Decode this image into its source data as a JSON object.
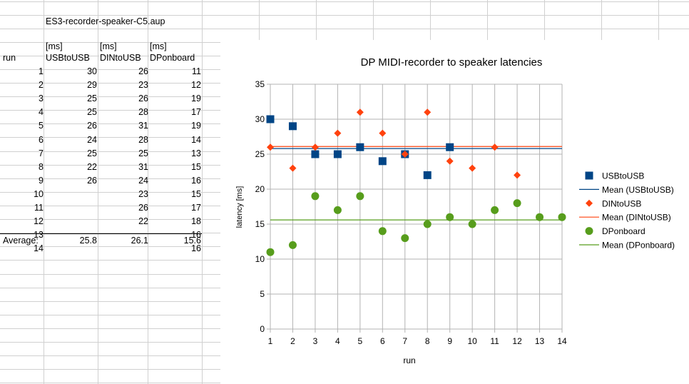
{
  "sheet": {
    "filename": "ES3-recorder-speaker-C5.aup",
    "units": [
      "[ms]",
      "[ms]",
      "[ms]"
    ],
    "run_header": "run",
    "column_headers": [
      "USBtoUSB",
      "DINtoUSB",
      "DPonboard"
    ],
    "rows": [
      {
        "run": "1",
        "usb": "30",
        "din": "26",
        "dp": "11"
      },
      {
        "run": "2",
        "usb": "29",
        "din": "23",
        "dp": "12"
      },
      {
        "run": "3",
        "usb": "25",
        "din": "26",
        "dp": "19"
      },
      {
        "run": "4",
        "usb": "25",
        "din": "28",
        "dp": "17"
      },
      {
        "run": "5",
        "usb": "26",
        "din": "31",
        "dp": "19"
      },
      {
        "run": "6",
        "usb": "24",
        "din": "28",
        "dp": "14"
      },
      {
        "run": "7",
        "usb": "25",
        "din": "25",
        "dp": "13"
      },
      {
        "run": "8",
        "usb": "22",
        "din": "31",
        "dp": "15"
      },
      {
        "run": "9",
        "usb": "26",
        "din": "24",
        "dp": "16"
      },
      {
        "run": "10",
        "usb": "",
        "din": "23",
        "dp": "15"
      },
      {
        "run": "11",
        "usb": "",
        "din": "26",
        "dp": "17"
      },
      {
        "run": "12",
        "usb": "",
        "din": "22",
        "dp": "18"
      },
      {
        "run": "13",
        "usb": "",
        "din": "",
        "dp": "16"
      },
      {
        "run": "14",
        "usb": "",
        "din": "",
        "dp": "16"
      }
    ],
    "average_label": "Average:",
    "averages": [
      "25.8",
      "26.1",
      "15.6"
    ]
  },
  "chart_data": {
    "type": "scatter",
    "title": "DP MIDI-recorder to speaker latencies",
    "xlabel": "run",
    "ylabel": "latency [ms]",
    "xlim": [
      1,
      14
    ],
    "ylim": [
      0,
      35
    ],
    "xticks": [
      1,
      2,
      3,
      4,
      5,
      6,
      7,
      8,
      9,
      10,
      11,
      12,
      13,
      14
    ],
    "yticks": [
      0,
      5,
      10,
      15,
      20,
      25,
      30,
      35
    ],
    "grid": true,
    "legend_position": "right",
    "series": [
      {
        "name": "USBtoUSB",
        "marker": "square",
        "color": "#004586",
        "x": [
          1,
          2,
          3,
          4,
          5,
          6,
          7,
          8,
          9
        ],
        "y": [
          30,
          29,
          25,
          25,
          26,
          24,
          25,
          22,
          26
        ]
      },
      {
        "name": "DINtoUSB",
        "marker": "diamond",
        "color": "#ff420e",
        "x": [
          1,
          2,
          3,
          4,
          5,
          6,
          7,
          8,
          9,
          10,
          11,
          12
        ],
        "y": [
          26,
          23,
          26,
          28,
          31,
          28,
          25,
          31,
          24,
          23,
          26,
          22
        ]
      },
      {
        "name": "DPonboard",
        "marker": "circle",
        "color": "#579d1c",
        "x": [
          1,
          2,
          3,
          4,
          5,
          6,
          7,
          8,
          9,
          10,
          11,
          12,
          13,
          14
        ],
        "y": [
          11,
          12,
          19,
          17,
          19,
          14,
          13,
          15,
          16,
          15,
          17,
          18,
          16,
          16
        ]
      }
    ],
    "mean_lines": [
      {
        "name": "Mean (USBtoUSB)",
        "value": 25.8,
        "color": "#004586"
      },
      {
        "name": "Mean (DINtoUSB)",
        "value": 26.1,
        "color": "#ff420e"
      },
      {
        "name": "Mean (DPonboard)",
        "value": 15.6,
        "color": "#579d1c"
      }
    ]
  }
}
